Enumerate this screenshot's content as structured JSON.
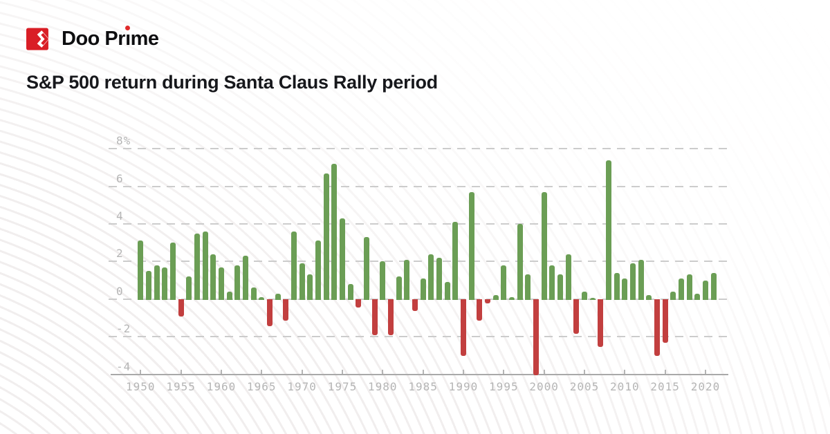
{
  "brand": {
    "name": "Doo Prime"
  },
  "page_title": "S&P 500 return during Santa Claus Rally period",
  "colors": {
    "brand_red": "#D91E26",
    "logo_dot_red": "#E02B2B",
    "bar_positive": "#6B9E55",
    "bar_negative": "#C23F3F",
    "gridline": "#CCCCCC",
    "axis_text": "#B5B5B5",
    "title_text": "#17181C"
  },
  "chart_data": {
    "type": "bar",
    "title": "S&P 500 return during Santa Claus Rally period",
    "xlabel": "",
    "ylabel": "",
    "unit": "%",
    "ylim": [
      -4,
      8
    ],
    "yticks": [
      8,
      6,
      4,
      2,
      0,
      -2,
      -4
    ],
    "ytick_labels": [
      "8%",
      "6",
      "4",
      "2",
      "0",
      "-2",
      "-4"
    ],
    "xtick_labels": [
      "1950",
      "1955",
      "1960",
      "1965",
      "1970",
      "1975",
      "1980",
      "1985",
      "1990",
      "1995",
      "2000",
      "2005",
      "2010",
      "2015",
      "2020"
    ],
    "grid": "horizontal-dashed",
    "legend": "none",
    "categories": [
      1950,
      1951,
      1952,
      1953,
      1954,
      1955,
      1956,
      1957,
      1958,
      1959,
      1960,
      1961,
      1962,
      1963,
      1964,
      1965,
      1966,
      1967,
      1968,
      1969,
      1970,
      1971,
      1972,
      1973,
      1974,
      1975,
      1976,
      1977,
      1978,
      1979,
      1980,
      1981,
      1982,
      1983,
      1984,
      1985,
      1986,
      1987,
      1988,
      1989,
      1990,
      1991,
      1992,
      1993,
      1994,
      1995,
      1996,
      1997,
      1998,
      1999,
      2000,
      2001,
      2002,
      2003,
      2004,
      2005,
      2006,
      2007,
      2008,
      2009,
      2010,
      2011,
      2012,
      2013,
      2014,
      2015,
      2016,
      2017,
      2018,
      2019,
      2020,
      2021
    ],
    "values": [
      3.1,
      1.5,
      1.8,
      1.7,
      3.0,
      -0.9,
      1.2,
      3.5,
      3.6,
      2.4,
      1.7,
      0.4,
      1.8,
      2.3,
      0.6,
      0.1,
      -1.4,
      0.3,
      -1.1,
      3.6,
      1.9,
      1.3,
      3.1,
      6.7,
      7.2,
      4.3,
      0.8,
      -0.4,
      3.3,
      -1.9,
      2.0,
      -1.9,
      1.2,
      2.1,
      -0.6,
      1.1,
      2.4,
      2.2,
      0.9,
      4.1,
      -3.0,
      5.7,
      -1.1,
      -0.2,
      0.2,
      1.8,
      0.1,
      4.0,
      1.3,
      -4.0,
      5.7,
      1.8,
      1.3,
      2.4,
      -1.8,
      0.4,
      0.05,
      -2.5,
      7.4,
      1.4,
      1.1,
      1.9,
      2.1,
      0.2,
      -3.0,
      -2.3,
      0.4,
      1.1,
      1.3,
      0.3,
      1.0,
      1.4
    ]
  }
}
